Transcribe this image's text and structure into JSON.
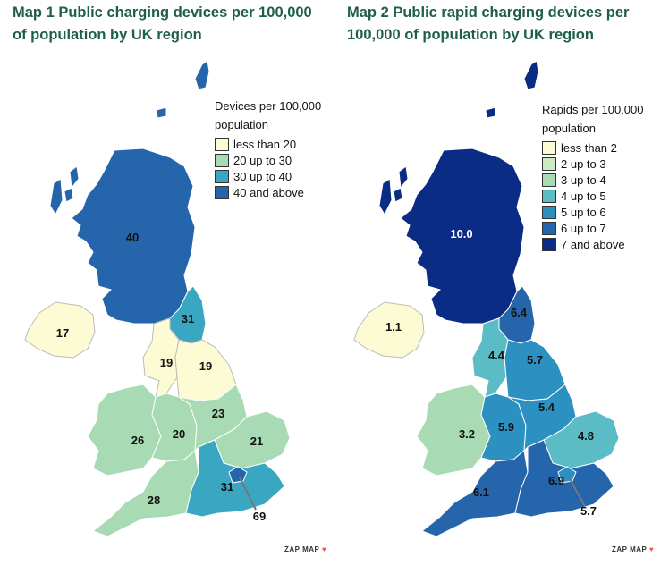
{
  "map1": {
    "title": "Map 1 Public charging devices per 100,000 of population by UK region",
    "legend_title": "Devices per 100,000 population",
    "legend": [
      {
        "label": "less than 20",
        "color": "#fdfbd3"
      },
      {
        "label": "20 up to 30",
        "color": "#a8dbb4"
      },
      {
        "label": "30 up to 40",
        "color": "#3aa7c2"
      },
      {
        "label": "40 and above",
        "color": "#2565ac"
      }
    ],
    "regions": {
      "scotland": "40",
      "northern_ireland": "17",
      "north_east": "31",
      "north_west": "19",
      "yorkshire": "19",
      "wales": "26",
      "west_midlands": "20",
      "east_midlands": "23",
      "east": "21",
      "south_west": "28",
      "south_east": "31",
      "london": "69"
    }
  },
  "map2": {
    "title": "Map 2 Public rapid charging devices per 100,000 of population by UK region",
    "legend_title": "Rapids per 100,000 population",
    "legend": [
      {
        "label": "less than 2",
        "color": "#fdfbd3"
      },
      {
        "label": "2 up to 3",
        "color": "#cdebc3"
      },
      {
        "label": "3 up to 4",
        "color": "#a8dbb4"
      },
      {
        "label": "4 up to 5",
        "color": "#5cbcc6"
      },
      {
        "label": "5 up to 6",
        "color": "#2c90c0"
      },
      {
        "label": "6 up to 7",
        "color": "#2565ac"
      },
      {
        "label": "7 and above",
        "color": "#0b2c84"
      }
    ],
    "regions": {
      "scotland": "10.0",
      "northern_ireland": "1.1",
      "north_east": "6.4",
      "north_west": "4.4",
      "yorkshire": "5.7",
      "wales": "3.2",
      "west_midlands": "5.9",
      "east_midlands": "5.4",
      "east": "4.8",
      "south_west": "6.1",
      "south_east": "6.9",
      "london": "5.7"
    }
  },
  "brand": "ZAP MAP",
  "brand_pin": "♥"
}
